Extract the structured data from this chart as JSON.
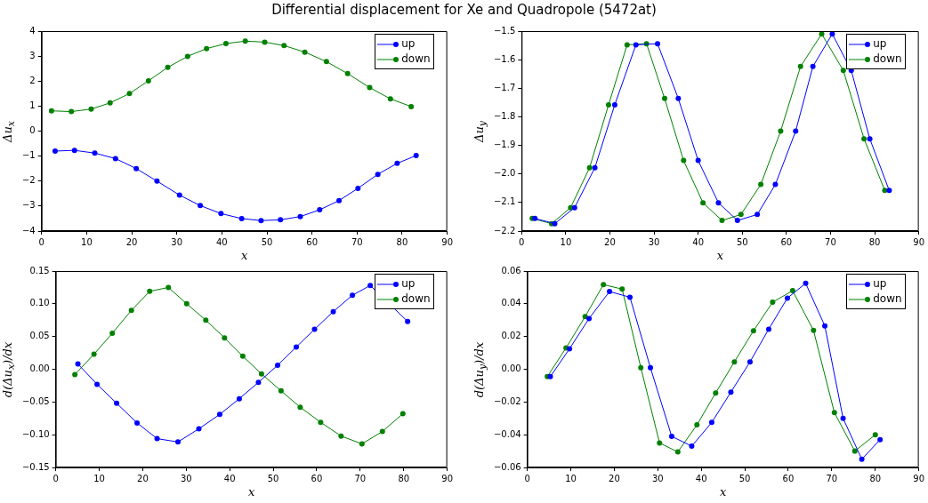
{
  "chart_data": [
    {
      "type": "line",
      "title": "Differential displacement for Xe and Quadropole (5472at)",
      "xlabel": "x",
      "ylabel": "Δu$_{x}$",
      "marker": "circle",
      "legend": "top right",
      "grid": false,
      "xlim": [
        0,
        90
      ],
      "xticks": [
        0,
        10,
        20,
        30,
        40,
        50,
        60,
        70,
        80,
        90
      ],
      "ylim": [
        -4,
        4
      ],
      "yticks": [
        {
          "value": -4,
          "label": "−4"
        },
        {
          "value": -3,
          "label": "−3"
        },
        {
          "value": -2,
          "label": "−2"
        },
        {
          "value": -1,
          "label": "−1"
        },
        0,
        1,
        2,
        3,
        4
      ],
      "series": [
        {
          "name": "up",
          "color": "#0000ff",
          "x": [
            3.0,
            7.3,
            11.8,
            16.4,
            21.0,
            25.6,
            30.6,
            35.2,
            39.8,
            44.4,
            48.7,
            53.0,
            57.4,
            61.7,
            66.0,
            70.2,
            74.6,
            78.9,
            83.1
          ],
          "values": [
            -0.8,
            -0.77,
            -0.88,
            -1.1,
            -1.5,
            -2.0,
            -2.56,
            -2.98,
            -3.3,
            -3.5,
            -3.58,
            -3.55,
            -3.42,
            -3.15,
            -2.78,
            -2.29,
            -1.73,
            -1.29,
            -0.98
          ]
        },
        {
          "name": "down",
          "color": "#008000",
          "x": [
            2.2,
            6.6,
            11.0,
            15.2,
            19.5,
            23.7,
            28.0,
            32.4,
            36.6,
            40.9,
            45.2,
            49.5,
            53.8,
            58.4,
            63.2,
            67.9,
            72.8,
            77.4,
            82.0
          ],
          "values": [
            0.81,
            0.78,
            0.88,
            1.13,
            1.5,
            2.01,
            2.55,
            2.99,
            3.3,
            3.5,
            3.6,
            3.56,
            3.42,
            3.16,
            2.78,
            2.3,
            1.74,
            1.29,
            0.98
          ]
        }
      ]
    },
    {
      "type": "line",
      "xlabel": "x",
      "ylabel": "Δu$_{y}$",
      "marker": "circle",
      "legend": "top right",
      "grid": false,
      "xlim": [
        0,
        90
      ],
      "xticks": [
        0,
        10,
        20,
        30,
        40,
        50,
        60,
        70,
        80,
        90
      ],
      "ylim": [
        -2.2,
        -1.5
      ],
      "yticks": [
        {
          "value": -2.2,
          "label": "−2.2"
        },
        {
          "value": -2.1,
          "label": "−2.1"
        },
        {
          "value": -2.0,
          "label": "−2.0"
        },
        {
          "value": -1.9,
          "label": "−1.9"
        },
        {
          "value": -1.8,
          "label": "−1.8"
        },
        {
          "value": -1.7,
          "label": "−1.7"
        },
        {
          "value": -1.6,
          "label": "−1.6"
        },
        {
          "value": -1.5,
          "label": "−1.5"
        }
      ],
      "series": [
        {
          "name": "up",
          "color": "#0000ff",
          "x": [
            3.0,
            7.5,
            12.0,
            16.6,
            21.1,
            25.9,
            30.8,
            35.5,
            40.0,
            44.6,
            48.9,
            53.4,
            57.5,
            62.1,
            66.0,
            70.4,
            74.7,
            78.9,
            83.3
          ],
          "values": [
            -2.156,
            -2.174,
            -2.118,
            -1.978,
            -1.758,
            -1.548,
            -1.544,
            -1.736,
            -1.953,
            -2.101,
            -2.163,
            -2.142,
            -2.037,
            -1.85,
            -1.624,
            -1.51,
            -1.638,
            -1.877,
            -2.058
          ]
        },
        {
          "name": "down",
          "color": "#008000",
          "x": [
            2.4,
            6.8,
            11.1,
            15.4,
            19.7,
            23.9,
            28.3,
            32.4,
            36.7,
            41.1,
            45.4,
            49.7,
            54.2,
            58.7,
            63.2,
            68.0,
            72.9,
            77.6,
            82.3
          ],
          "values": [
            -2.156,
            -2.174,
            -2.118,
            -1.978,
            -1.758,
            -1.548,
            -1.544,
            -1.736,
            -1.953,
            -2.101,
            -2.163,
            -2.142,
            -2.037,
            -1.85,
            -1.624,
            -1.51,
            -1.638,
            -1.877,
            -2.058
          ]
        }
      ]
    },
    {
      "type": "line",
      "xlabel": "x",
      "ylabel": "d(Δu$_{x}$)/dx",
      "marker": "circle",
      "legend": "top right",
      "grid": false,
      "xlim": [
        0,
        90
      ],
      "xticks": [
        0,
        10,
        20,
        30,
        40,
        50,
        60,
        70,
        80,
        90
      ],
      "ylim": [
        -0.15,
        0.15
      ],
      "yticks": [
        {
          "value": -0.15,
          "label": "−0.15"
        },
        {
          "value": -0.1,
          "label": "−0.10"
        },
        {
          "value": -0.05,
          "label": "−0.05"
        },
        {
          "value": 0,
          "label": "0.00"
        },
        {
          "value": 0.05,
          "label": "0.05"
        },
        {
          "value": 0.1,
          "label": "0.10"
        },
        {
          "value": 0.15,
          "label": "0.15"
        }
      ],
      "series": [
        {
          "name": "up",
          "color": "#0000ff",
          "x": [
            5.1,
            9.5,
            14.0,
            18.7,
            23.3,
            28.1,
            32.9,
            37.7,
            42.2,
            46.6,
            51.0,
            55.3,
            59.5,
            63.8,
            68.2,
            72.3,
            80.9
          ],
          "values": [
            0.008,
            -0.023,
            -0.052,
            -0.082,
            -0.106,
            -0.111,
            -0.091,
            -0.069,
            -0.045,
            -0.02,
            0.006,
            0.034,
            0.061,
            0.088,
            0.113,
            0.128,
            0.073
          ]
        },
        {
          "name": "down",
          "color": "#008000",
          "x": [
            4.4,
            8.8,
            13.0,
            17.4,
            21.6,
            25.9,
            30.1,
            34.5,
            38.8,
            43.0,
            47.3,
            51.8,
            56.2,
            60.9,
            65.6,
            70.4,
            75.1,
            79.8
          ],
          "values": [
            -0.008,
            0.023,
            0.055,
            0.09,
            0.119,
            0.125,
            0.1,
            0.075,
            0.048,
            0.02,
            -0.007,
            -0.033,
            -0.058,
            -0.081,
            -0.102,
            -0.114,
            -0.095,
            -0.068
          ]
        }
      ]
    },
    {
      "type": "line",
      "xlabel": "x",
      "ylabel": "d(Δu$_{y}$)/dx",
      "marker": "circle",
      "legend": "top right",
      "grid": false,
      "xlim": [
        0,
        90
      ],
      "xticks": [
        0,
        10,
        20,
        30,
        40,
        50,
        60,
        70,
        80,
        90
      ],
      "ylim": [
        -0.06,
        0.06
      ],
      "yticks": [
        {
          "value": -0.06,
          "label": "−0.06"
        },
        {
          "value": -0.04,
          "label": "−0.04"
        },
        {
          "value": -0.02,
          "label": "−0.02"
        },
        {
          "value": 0,
          "label": "0.00"
        },
        {
          "value": 0.02,
          "label": "0.02"
        },
        {
          "value": 0.04,
          "label": "0.04"
        },
        {
          "value": 0.06,
          "label": "0.06"
        }
      ],
      "series": [
        {
          "name": "up",
          "color": "#0000ff",
          "x": [
            5.3,
            9.7,
            14.2,
            18.9,
            23.6,
            28.3,
            33.2,
            37.8,
            42.4,
            46.8,
            51.2,
            55.5,
            59.8,
            64.0,
            68.4,
            72.6,
            76.9,
            81.1
          ],
          "values": [
            -0.0045,
            0.0125,
            0.031,
            0.0475,
            0.044,
            0.001,
            -0.041,
            -0.047,
            -0.0325,
            -0.014,
            0.0045,
            0.0245,
            0.0435,
            0.0525,
            0.0265,
            -0.03,
            -0.055,
            -0.043
          ]
        },
        {
          "name": "down",
          "color": "#008000",
          "x": [
            4.6,
            8.9,
            13.3,
            17.5,
            21.8,
            26.1,
            30.4,
            34.6,
            39.0,
            43.3,
            47.6,
            52.0,
            56.4,
            61.0,
            65.8,
            70.6,
            75.3,
            80.0
          ],
          "values": [
            -0.0045,
            0.013,
            0.0322,
            0.0517,
            0.049,
            0.001,
            -0.045,
            -0.0505,
            -0.034,
            -0.0145,
            0.0045,
            0.0235,
            0.041,
            0.048,
            0.0237,
            -0.0265,
            -0.05,
            -0.04
          ]
        }
      ]
    }
  ]
}
